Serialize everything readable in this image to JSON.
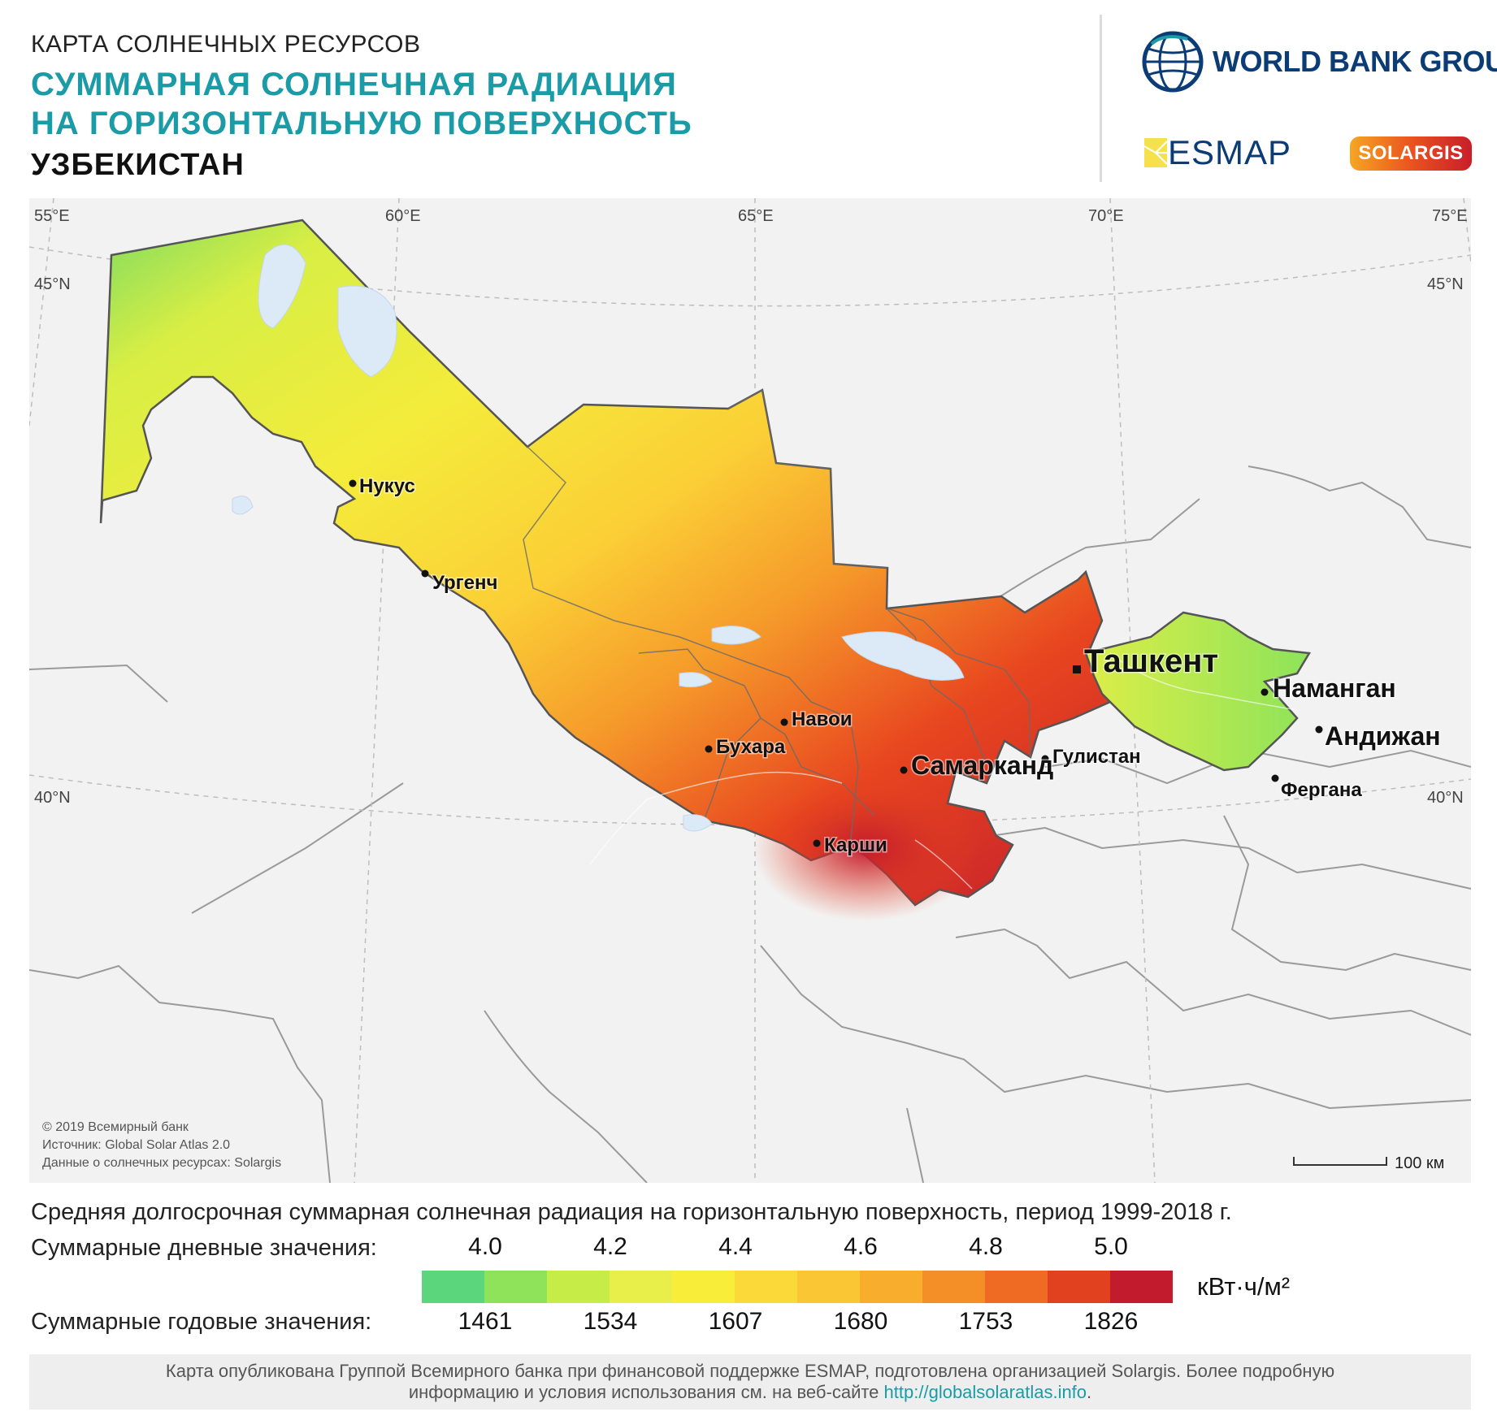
{
  "header": {
    "kicker": "КАРТА СОЛНЕЧНЫХ РЕСУРСОВ",
    "title_line1": "СУММАРНАЯ СОЛНЕЧНАЯ РАДИАЦИЯ",
    "title_line2": "НА ГОРИЗОНТАЛЬНУЮ ПОВЕРХНОСТЬ",
    "country": "УЗБЕКИСТАН"
  },
  "logos": {
    "world_bank": "WORLD BANK GROUP",
    "esmap": "ESMAP",
    "solargis": "SOLARGIS"
  },
  "map": {
    "graticule": {
      "top_lon_labels": [
        "55°E",
        "60°E",
        "65°E",
        "70°E",
        "75°E"
      ],
      "lat_labels": [
        "45°N",
        "40°N"
      ]
    },
    "cities": {
      "nukus": "Нукус",
      "urgench": "Ургенч",
      "tashkent": "Ташкент",
      "namangan": "Наманган",
      "andijan": "Андижан",
      "gulistan": "Гулистан",
      "fergana": "Фергана",
      "navoi": "Навои",
      "bukhara": "Бухара",
      "samarkand": "Самарканд",
      "karshi": "Карши"
    },
    "credits": {
      "copyright": "© 2019 Всемирный банк",
      "source": "Источник: Global Solar Atlas 2.0",
      "data": "Данные о солнечных ресурсах: Solargis"
    },
    "scale_bar": "100 км"
  },
  "legend": {
    "caption": "Средняя долгосрочная суммарная солнечная радиация на горизонтальную поверхность, период 1999-2018 г.",
    "daily_label": "Суммарные дневные значения:",
    "daily_ticks": [
      "4.0",
      "4.2",
      "4.4",
      "4.6",
      "4.8",
      "5.0"
    ],
    "annual_label": "Суммарные годовые значения:",
    "annual_ticks": [
      "1461",
      "1534",
      "1607",
      "1680",
      "1753",
      "1826"
    ],
    "unit": "кВт·ч/м²",
    "colors": [
      "#5bd67c",
      "#8ee35a",
      "#c6ec47",
      "#e8ef4a",
      "#f8ee3a",
      "#fad939",
      "#fbc634",
      "#f8ad2d",
      "#f38f26",
      "#ef6a22",
      "#e2411f",
      "#c31b2e"
    ]
  },
  "footer": {
    "text_line1": "Карта опубликована Группой Всемирного банка при финансовой поддержке ESMAP, подготовлена организацией Solargis. Более подробную",
    "text_line2": "информацию и условия использования см. на веб-сайте",
    "url": "http://globalsolaratlas.info",
    "end": "."
  }
}
